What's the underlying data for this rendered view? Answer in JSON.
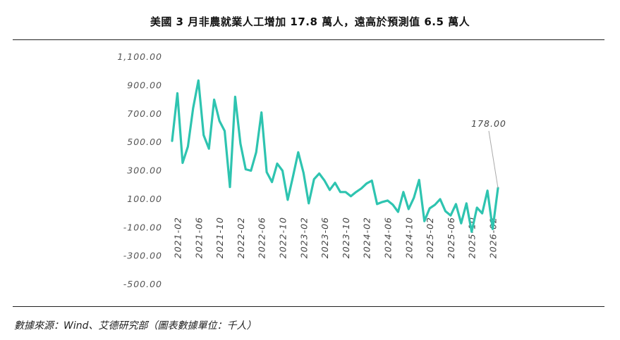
{
  "header": {
    "title": "美國 3 月非農就業人工增加 17.8 萬人，遠高於預測值 6.5 萬人"
  },
  "footer": {
    "source": "數據來源：Wind、艾德研究部（圖表數據單位：千人）"
  },
  "chart_data": {
    "type": "line",
    "color": "#2ec4b0",
    "ylim": [
      -500,
      1100
    ],
    "yticks": [
      "1,100.00",
      "900.00",
      "700.00",
      "500.00",
      "300.00",
      "100.00",
      "-100.00",
      "-300.00",
      "-500.00"
    ],
    "ytick_values": [
      1100,
      900,
      700,
      500,
      300,
      100,
      -100,
      -300,
      -500
    ],
    "xtick_labels": [
      "2021-02",
      "2021-06",
      "2021-10",
      "2022-02",
      "2022-06",
      "2022-10",
      "2023-02",
      "2023-06",
      "2023-10",
      "2024-02",
      "2024-06",
      "2024-10",
      "2025-02",
      "2025-06",
      "2025-10",
      "2026-02"
    ],
    "x": [
      "2021-01",
      "2021-02",
      "2021-03",
      "2021-04",
      "2021-05",
      "2021-06",
      "2021-07",
      "2021-08",
      "2021-09",
      "2021-10",
      "2021-11",
      "2021-12",
      "2022-01",
      "2022-02",
      "2022-03",
      "2022-04",
      "2022-05",
      "2022-06",
      "2022-07",
      "2022-08",
      "2022-09",
      "2022-10",
      "2022-11",
      "2022-12",
      "2023-01",
      "2023-02",
      "2023-03",
      "2023-04",
      "2023-05",
      "2023-06",
      "2023-07",
      "2023-08",
      "2023-09",
      "2023-10",
      "2023-11",
      "2023-12",
      "2024-01",
      "2024-02",
      "2024-03",
      "2024-04",
      "2024-05",
      "2024-06",
      "2024-07",
      "2024-08",
      "2024-09",
      "2024-10",
      "2024-11",
      "2024-12",
      "2025-01",
      "2025-02",
      "2025-03",
      "2025-04",
      "2025-05",
      "2025-06",
      "2025-07",
      "2025-08",
      "2025-09",
      "2025-10",
      "2025-11",
      "2025-12",
      "2026-01",
      "2026-02",
      "2026-03"
    ],
    "values": [
      510,
      845,
      355,
      470,
      740,
      935,
      550,
      455,
      800,
      650,
      580,
      185,
      820,
      490,
      310,
      300,
      430,
      710,
      290,
      220,
      350,
      300,
      95,
      260,
      430,
      285,
      70,
      240,
      280,
      230,
      165,
      215,
      150,
      150,
      120,
      150,
      175,
      210,
      230,
      65,
      80,
      90,
      60,
      10,
      150,
      30,
      110,
      235,
      -55,
      35,
      60,
      100,
      15,
      -15,
      65,
      -70,
      70,
      -130,
      40,
      0,
      160,
      -110,
      178
    ],
    "annotation": {
      "label": "178.00",
      "value": 178
    }
  }
}
